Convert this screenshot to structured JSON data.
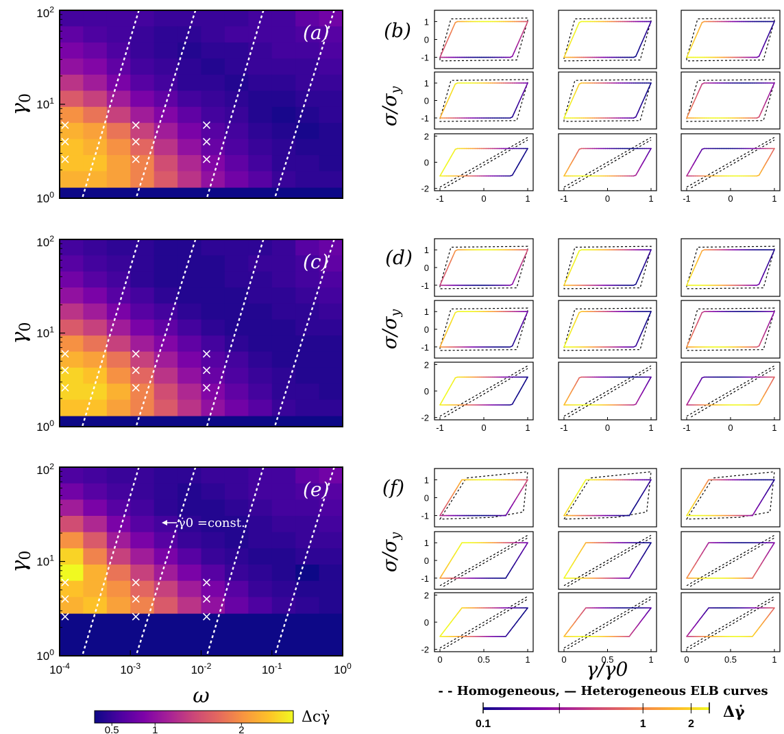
{
  "chart_data": [
    {
      "type": "heatmap",
      "panel_label": "(a)",
      "ylabel": "γ0",
      "y_scale": "log",
      "ylim": [
        1,
        100
      ],
      "y_ticks": [
        "10^0",
        "10^1",
        "10^2"
      ],
      "x_ticks": [],
      "grid": [
        [
          0.55,
          0.55,
          0.55,
          0.55,
          0.5,
          0.5,
          0.5,
          0.5,
          0.55,
          0.55,
          0.7,
          0.8
        ],
        [
          0.7,
          0.6,
          0.55,
          0.5,
          0.45,
          0.45,
          0.5,
          0.55,
          0.55,
          0.55,
          0.6,
          0.65
        ],
        [
          0.85,
          0.75,
          0.6,
          0.5,
          0.45,
          0.4,
          0.45,
          0.45,
          0.5,
          0.55,
          0.55,
          0.6
        ],
        [
          1.0,
          0.9,
          0.7,
          0.55,
          0.5,
          0.45,
          0.4,
          0.45,
          0.5,
          0.5,
          0.5,
          0.55
        ],
        [
          1.3,
          1.1,
          0.85,
          0.65,
          0.55,
          0.45,
          0.45,
          0.4,
          0.45,
          0.45,
          0.5,
          0.5
        ],
        [
          1.6,
          1.4,
          1.1,
          0.85,
          0.7,
          0.55,
          0.5,
          0.45,
          0.4,
          0.4,
          0.45,
          0.45
        ],
        [
          2.0,
          1.8,
          1.4,
          1.1,
          0.9,
          0.7,
          0.55,
          0.5,
          0.4,
          0.35,
          0.4,
          0.45
        ],
        [
          2.2,
          2.1,
          1.8,
          1.4,
          1.1,
          0.85,
          0.65,
          0.55,
          0.45,
          0.4,
          0.35,
          0.4
        ],
        [
          2.3,
          2.2,
          2.0,
          1.7,
          1.3,
          1.0,
          0.75,
          0.6,
          0.5,
          0.45,
          0.4,
          0.4
        ],
        [
          2.3,
          2.3,
          2.1,
          1.9,
          1.5,
          1.2,
          0.9,
          0.7,
          0.55,
          0.45,
          0.45,
          0.4
        ],
        [
          2.2,
          2.2,
          2.1,
          1.9,
          1.6,
          1.3,
          1.0,
          0.8,
          0.65,
          0.5,
          0.45,
          0.45
        ]
      ],
      "bottom_row_value": 0.3,
      "markers_x": [
        {
          "omega": 0.0001,
          "gamma0": [
            6,
            4,
            2.6
          ]
        },
        {
          "omega": 0.001,
          "gamma0": [
            6,
            4,
            2.6
          ]
        },
        {
          "omega": 0.01,
          "gamma0": [
            6,
            4,
            2.6
          ]
        }
      ]
    },
    {
      "type": "heatmap",
      "panel_label": "(c)",
      "ylabel": "γ0",
      "y_scale": "log",
      "ylim": [
        1,
        100
      ],
      "y_ticks": [
        "10^0",
        "10^1",
        "10^2"
      ],
      "x_ticks": [],
      "grid": [
        [
          0.55,
          0.5,
          0.45,
          0.45,
          0.4,
          0.4,
          0.45,
          0.45,
          0.45,
          0.5,
          0.65,
          0.75
        ],
        [
          0.65,
          0.55,
          0.5,
          0.45,
          0.4,
          0.4,
          0.4,
          0.45,
          0.5,
          0.5,
          0.55,
          0.7
        ],
        [
          0.8,
          0.65,
          0.55,
          0.45,
          0.4,
          0.4,
          0.4,
          0.45,
          0.45,
          0.5,
          0.55,
          0.6
        ],
        [
          1.0,
          0.85,
          0.65,
          0.55,
          0.45,
          0.4,
          0.4,
          0.4,
          0.45,
          0.45,
          0.5,
          0.55
        ],
        [
          1.3,
          1.1,
          0.85,
          0.65,
          0.55,
          0.45,
          0.4,
          0.4,
          0.4,
          0.45,
          0.45,
          0.5
        ],
        [
          1.6,
          1.4,
          1.1,
          0.85,
          0.7,
          0.55,
          0.45,
          0.4,
          0.4,
          0.4,
          0.45,
          0.45
        ],
        [
          2.0,
          1.8,
          1.4,
          1.1,
          0.9,
          0.7,
          0.55,
          0.45,
          0.4,
          0.4,
          0.4,
          0.4
        ],
        [
          2.2,
          2.1,
          1.8,
          1.4,
          1.1,
          0.85,
          0.65,
          0.55,
          0.45,
          0.4,
          0.4,
          0.4
        ],
        [
          2.4,
          2.3,
          2.0,
          1.7,
          1.3,
          1.0,
          0.75,
          0.6,
          0.5,
          0.45,
          0.4,
          0.4
        ],
        [
          2.4,
          2.4,
          2.2,
          1.9,
          1.5,
          1.2,
          0.9,
          0.7,
          0.55,
          0.45,
          0.45,
          0.4
        ],
        [
          2.3,
          2.3,
          2.1,
          1.9,
          1.6,
          1.3,
          1.0,
          0.8,
          0.65,
          0.5,
          0.45,
          0.45
        ]
      ],
      "bottom_row_value": 0.3,
      "markers_x": [
        {
          "omega": 0.0001,
          "gamma0": [
            6,
            4,
            2.6
          ]
        },
        {
          "omega": 0.001,
          "gamma0": [
            6,
            4,
            2.6
          ]
        },
        {
          "omega": 0.01,
          "gamma0": [
            6,
            4,
            2.6
          ]
        }
      ]
    },
    {
      "type": "heatmap",
      "panel_label": "(e)",
      "ylabel": "γ0",
      "xlabel": "ω",
      "x_scale": "log",
      "y_scale": "log",
      "xlim": [
        0.0001,
        1
      ],
      "ylim": [
        1,
        100
      ],
      "x_ticks": [
        "10^-4",
        "10^-3",
        "10^-2",
        "10^-1",
        "10^0"
      ],
      "y_ticks": [
        "10^0",
        "10^1",
        "10^2"
      ],
      "annotation": "γ̇0 =const.",
      "grid": [
        [
          0.6,
          0.55,
          0.5,
          0.5,
          0.45,
          0.45,
          0.5,
          0.5,
          0.55,
          0.55,
          0.7,
          0.8
        ],
        [
          0.8,
          0.65,
          0.55,
          0.5,
          0.45,
          0.4,
          0.45,
          0.5,
          0.55,
          0.55,
          0.6,
          0.65
        ],
        [
          1.1,
          0.85,
          0.65,
          0.55,
          0.45,
          0.4,
          0.4,
          0.45,
          0.5,
          0.55,
          0.55,
          0.6
        ],
        [
          1.5,
          1.2,
          0.85,
          0.65,
          0.55,
          0.45,
          0.4,
          0.4,
          0.45,
          0.5,
          0.5,
          0.55
        ],
        [
          2.0,
          1.6,
          1.1,
          0.85,
          0.65,
          0.5,
          0.45,
          0.4,
          0.45,
          0.45,
          0.5,
          0.5
        ],
        [
          2.4,
          1.9,
          1.4,
          1.1,
          0.85,
          0.65,
          0.5,
          0.45,
          0.4,
          0.4,
          0.45,
          0.45
        ],
        [
          2.6,
          2.2,
          1.8,
          1.4,
          1.1,
          0.85,
          0.65,
          0.5,
          0.45,
          0.4,
          0.3,
          0.4
        ],
        [
          2.3,
          2.2,
          2.0,
          1.7,
          1.4,
          1.1,
          0.85,
          0.65,
          0.5,
          0.45,
          0.4,
          0.4
        ],
        [
          2.2,
          2.3,
          2.1,
          1.9,
          1.6,
          1.3,
          1.0,
          0.75,
          0.6,
          0.5,
          0.45,
          0.4
        ]
      ],
      "bottom_rows_value": 0.3,
      "markers_x": [
        {
          "omega": 0.0001,
          "gamma0": [
            6,
            4,
            2.6
          ]
        },
        {
          "omega": 0.001,
          "gamma0": [
            6,
            4,
            2.6
          ]
        },
        {
          "omega": 0.01,
          "gamma0": [
            6,
            4,
            2.6
          ]
        }
      ],
      "colorbar": {
        "label": "Δcγ̇",
        "ticks": [
          "0.5",
          "1",
          "2"
        ],
        "range": [
          0.3,
          2.6
        ]
      }
    },
    {
      "type": "line",
      "panel_label": "(b)",
      "ylabel": "σ/σy",
      "layout": "3x3 grid of stress-strain loops",
      "x_ticks_bottom": [
        "-1",
        "0",
        "1"
      ],
      "y_ticks_rows": [
        [
          "1",
          "0",
          "-1"
        ],
        [
          "1",
          "0",
          "-1"
        ],
        [
          "2",
          "0",
          "-2"
        ]
      ],
      "series": [
        {
          "name": "Homogeneous",
          "style": "dashed"
        },
        {
          "name": "Heterogeneous",
          "style": "solid, colored by Δγ̇"
        }
      ]
    },
    {
      "type": "line",
      "panel_label": "(d)",
      "ylabel": "σ/σy",
      "layout": "3x3 grid of stress-strain loops",
      "x_ticks_bottom": [
        "-1",
        "0",
        "1"
      ],
      "y_ticks_rows": [
        [
          "1",
          "0",
          "-1"
        ],
        [
          "1",
          "0",
          "-1"
        ],
        [
          "2",
          "0",
          "-2"
        ]
      ]
    },
    {
      "type": "line",
      "panel_label": "(f)",
      "ylabel": "σ/σy",
      "xlabel": "γ/γ0",
      "layout": "3x3 grid of stress-strain loops",
      "x_ticks_bottom": [
        "0",
        "0.5",
        "1"
      ],
      "y_ticks_rows": [
        [
          "1",
          "0",
          "-1"
        ],
        [
          "1",
          "0",
          "-1"
        ],
        [
          "2",
          "0",
          "-2"
        ]
      ],
      "legend": "- - Homogeneous, — Heterogeneous ELB curves",
      "colorbar": {
        "label": "Δγ̇",
        "ticks": [
          "0.1",
          "1",
          "2"
        ],
        "scale": "log",
        "range": [
          0.1,
          2.6
        ]
      }
    }
  ]
}
